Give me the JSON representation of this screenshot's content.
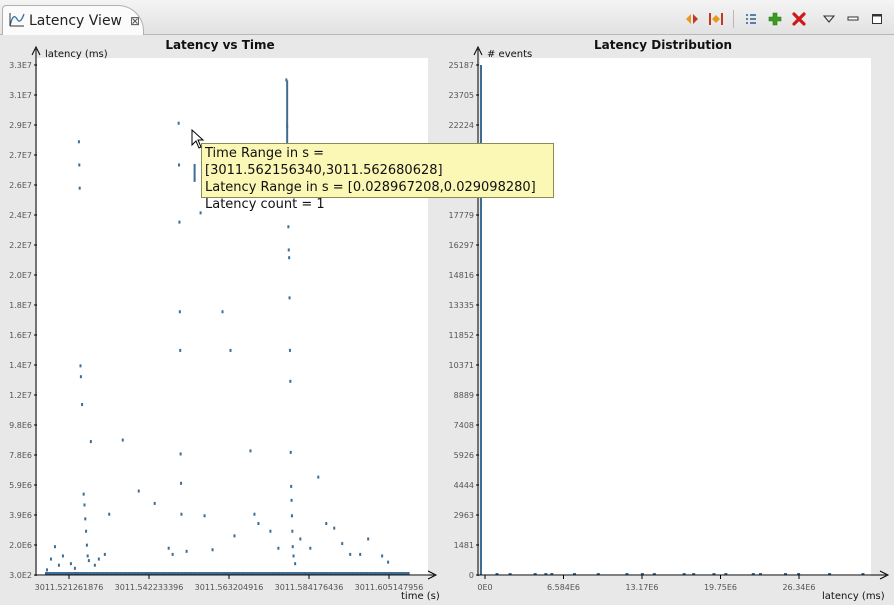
{
  "tab": {
    "title": "Latency View",
    "icon": "latency-chart-icon",
    "close_icon": "close-icon"
  },
  "toolbar": {
    "icons": [
      "zoom-fit-icon",
      "reset-range-icon",
      "list-icon",
      "add-icon",
      "remove-icon",
      "view-menu-icon",
      "minimize-icon",
      "maximize-icon"
    ],
    "colors": {
      "add": "#3b9b22",
      "remove": "#d01818"
    }
  },
  "left_chart": {
    "title": "Latency vs Time",
    "ylabel": "latency (ms)",
    "xlabel": "time (s)",
    "y_ticks": [
      "3.3E7",
      "3.1E7",
      "2.9E7",
      "2.7E7",
      "2.6E7",
      "2.4E7",
      "2.2E7",
      "2.0E7",
      "1.8E7",
      "1.6E7",
      "1.4E7",
      "1.2E7",
      "9.8E6",
      "7.8E6",
      "5.9E6",
      "3.9E6",
      "2.0E6",
      "3.0E2"
    ],
    "x_ticks": [
      "3011.521261876",
      "3011.542233396",
      "3011.563204916",
      "3011.584176436",
      "3011.605147956"
    ]
  },
  "right_chart": {
    "title": "Latency Distribution",
    "ylabel": "# events",
    "xlabel": "latency (ms)",
    "y_ticks": [
      "25187",
      "23705",
      "22224",
      "",
      "",
      "17779",
      "16297",
      "14816",
      "13335",
      "11852",
      "10371",
      "8889",
      "7408",
      "5926",
      "4444",
      "2963",
      "1481",
      "0"
    ],
    "x_ticks": [
      "0E0",
      "6.584E6",
      "13.17E6",
      "19.75E6",
      "26.34E6"
    ]
  },
  "tooltip": {
    "line1": "Time Range in s = [3011.562156340,3011.562680628]",
    "line2": "Latency Range in s = [0.028967208,0.029098280]",
    "line3": "Latency count = 1"
  },
  "chart_data": [
    {
      "type": "scatter",
      "title": "Latency vs Time",
      "xlabel": "time (s)",
      "ylabel": "latency (ms)",
      "xlim": [
        3011.5165,
        3011.6145
      ],
      "ylim": [
        300,
        33000000
      ],
      "color": "#3e6d94",
      "grid": false,
      "points": [
        [
          3011.527,
          28000000
        ],
        [
          3011.5271,
          26500000
        ],
        [
          3011.5272,
          25000000
        ],
        [
          3011.5274,
          13500000
        ],
        [
          3011.5275,
          12800000
        ],
        [
          3011.5278,
          11000000
        ],
        [
          3011.5282,
          5200000
        ],
        [
          3011.5284,
          4500000
        ],
        [
          3011.5286,
          3600000
        ],
        [
          3011.5288,
          2800000
        ],
        [
          3011.529,
          1900000
        ],
        [
          3011.5292,
          1200000
        ],
        [
          3011.5295,
          900000
        ],
        [
          3011.53,
          8600000
        ],
        [
          3011.531,
          600000
        ],
        [
          3011.532,
          1000000
        ],
        [
          3011.5335,
          1300000
        ],
        [
          3011.5346,
          3900000
        ],
        [
          3011.525,
          700000
        ],
        [
          3011.523,
          1200000
        ],
        [
          3011.521,
          1800000
        ],
        [
          3011.52,
          1000000
        ],
        [
          3011.519,
          300000
        ],
        [
          3011.522,
          600000
        ],
        [
          3011.526,
          400000
        ],
        [
          3011.538,
          8700000
        ],
        [
          3011.542,
          5400000
        ],
        [
          3011.546,
          4600000
        ],
        [
          3011.5495,
          1700000
        ],
        [
          3011.5505,
          1300000
        ],
        [
          3011.552,
          29200000
        ],
        [
          3011.5521,
          26500000
        ],
        [
          3011.5522,
          22800000
        ],
        [
          3011.5523,
          17000000
        ],
        [
          3011.5524,
          14500000
        ],
        [
          3011.5525,
          7800000
        ],
        [
          3011.5526,
          5900000
        ],
        [
          3011.5527,
          3900000
        ],
        [
          3011.554,
          1500000
        ],
        [
          3011.556,
          25500000
        ],
        [
          3011.5575,
          23400000
        ],
        [
          3011.5585,
          3800000
        ],
        [
          3011.5605,
          1600000
        ],
        [
          3011.563,
          17000000
        ],
        [
          3011.565,
          14500000
        ],
        [
          3011.566,
          2500000
        ],
        [
          3011.57,
          8000000
        ],
        [
          3011.571,
          3900000
        ],
        [
          3011.572,
          3300000
        ],
        [
          3011.575,
          2800000
        ],
        [
          3011.577,
          1700000
        ],
        [
          3011.579,
          32000000
        ],
        [
          3011.5792,
          29000000
        ],
        [
          3011.5795,
          22500000
        ],
        [
          3011.5796,
          21000000
        ],
        [
          3011.5797,
          20500000
        ],
        [
          3011.5798,
          17900000
        ],
        [
          3011.5799,
          14500000
        ],
        [
          3011.58,
          12500000
        ],
        [
          3011.5801,
          7900000
        ],
        [
          3011.5802,
          5700000
        ],
        [
          3011.5803,
          4800000
        ],
        [
          3011.5804,
          3800000
        ],
        [
          3011.5805,
          2800000
        ],
        [
          3011.5806,
          1800000
        ],
        [
          3011.5808,
          1200000
        ],
        [
          3011.5812,
          700000
        ],
        [
          3011.5825,
          2300000
        ],
        [
          3011.585,
          1700000
        ],
        [
          3011.587,
          6300000
        ],
        [
          3011.589,
          3300000
        ],
        [
          3011.591,
          3000000
        ],
        [
          3011.593,
          2000000
        ],
        [
          3011.595,
          1300000
        ],
        [
          3011.5975,
          1300000
        ],
        [
          3011.5995,
          2300000
        ],
        [
          3011.603,
          1200000
        ],
        [
          3011.6045,
          800000
        ]
      ],
      "baseline_note": "dense dashes along y≈300 from 3011.5185 to 3011.6095"
    },
    {
      "type": "bar",
      "title": "Latency Distribution",
      "xlabel": "latency (ms)",
      "ylabel": "# events",
      "xlim": [
        0,
        32800000
      ],
      "ylim": [
        0,
        25187
      ],
      "color": "#3e6d94",
      "bins": [
        [
          0,
          25187
        ]
      ],
      "small_bins_x": [
        1300000,
        2400000,
        4500000,
        5400000,
        5900000,
        7800000,
        9800000,
        12200000,
        13500000,
        14500000,
        17000000,
        17800000,
        19500000,
        20500000,
        22800000,
        23400000,
        25500000,
        26600000,
        29200000,
        32000000
      ]
    }
  ]
}
